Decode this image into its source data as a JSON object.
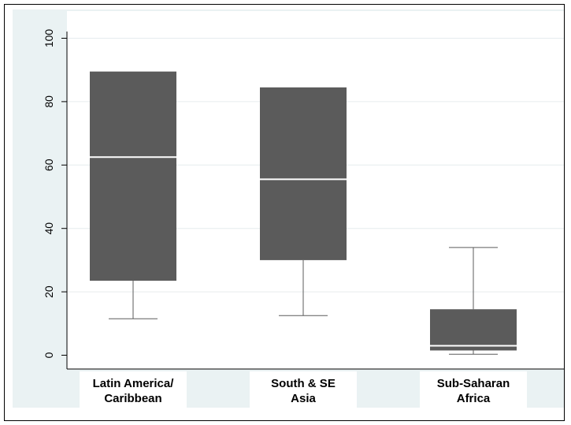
{
  "chart_data": {
    "type": "box",
    "categories": [
      "Latin America/\nCaribbean",
      "South & SE\nAsia",
      "Sub-Saharan\nAfrica"
    ],
    "boxes": [
      {
        "whisker_low": 11.5,
        "q1": 23.5,
        "median": 62.5,
        "q3": 89.5,
        "whisker_high": 89.5
      },
      {
        "whisker_low": 12.5,
        "q1": 30.0,
        "median": 55.5,
        "q3": 84.5,
        "whisker_high": 84.5
      },
      {
        "whisker_low": 0.3,
        "q1": 1.5,
        "median": 3.0,
        "q3": 14.5,
        "whisker_high": 34.0
      }
    ],
    "ylim": [
      0,
      100
    ],
    "yticks": [
      0,
      20,
      40,
      60,
      80,
      100
    ],
    "grid": true,
    "colors": {
      "box": "#5b5b5b",
      "median": "#ffffff",
      "whisker": "#5b5b5b",
      "background": "#eaf2f3",
      "plot": "#ffffff"
    }
  }
}
